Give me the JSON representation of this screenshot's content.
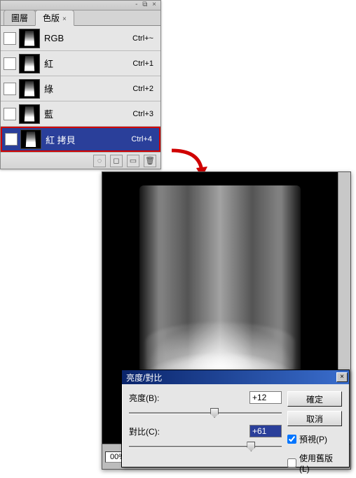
{
  "panel": {
    "ctrl_glyphs": "- ⧉ ×",
    "tab_layers": "圖層",
    "tab_channels": "色版",
    "channels": [
      {
        "name": "RGB",
        "shortcut": "Ctrl+~",
        "visible": false,
        "selected": false
      },
      {
        "name": "紅",
        "shortcut": "Ctrl+1",
        "visible": false,
        "selected": false
      },
      {
        "name": "綠",
        "shortcut": "Ctrl+2",
        "visible": false,
        "selected": false
      },
      {
        "name": "藍",
        "shortcut": "Ctrl+3",
        "visible": false,
        "selected": false
      },
      {
        "name": "紅 拷貝",
        "shortcut": "Ctrl+4",
        "visible": true,
        "selected": true
      }
    ],
    "footer_icons": [
      "◌",
      "◻",
      "▭",
      "🗑"
    ]
  },
  "status": {
    "zoom": "00%"
  },
  "dialog": {
    "title": "亮度/對比",
    "brightness_label": "亮度(B):",
    "brightness_value": "+12",
    "brightness_handle_pct": 56,
    "contrast_label": "對比(C):",
    "contrast_value": "+61",
    "contrast_handle_pct": 80,
    "ok": "確定",
    "cancel": "取消",
    "preview": "預視(P)",
    "use_legacy": "使用舊版(L)"
  },
  "colors": {
    "selection_blue": "#2a3f9a",
    "titlebar_from": "#0a246a",
    "titlebar_to": "#3a6ecd",
    "highlight_border": "#d00000"
  }
}
